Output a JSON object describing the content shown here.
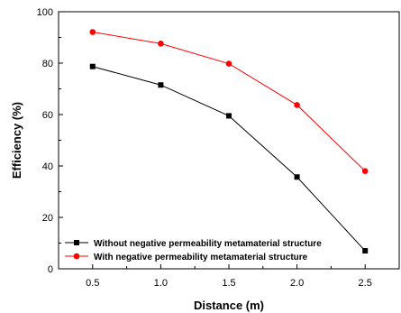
{
  "chart_data": {
    "type": "line",
    "title": "",
    "xlabel": "Distance (m)",
    "ylabel": "Efficiency (%)",
    "xlim": [
      0.25,
      2.75
    ],
    "ylim": [
      0,
      100
    ],
    "xticks": [
      0.5,
      1.0,
      1.5,
      2.0,
      2.5
    ],
    "xtick_labels": [
      "0.5",
      "1.0",
      "1.5",
      "2.0",
      "2.5"
    ],
    "yticks": [
      0,
      20,
      40,
      60,
      80,
      100
    ],
    "ytick_labels": [
      "0",
      "20",
      "40",
      "60",
      "80",
      "100"
    ],
    "grid": false,
    "legend_position": "bottom-left",
    "x": [
      0.5,
      1.0,
      1.5,
      2.0,
      2.5
    ],
    "series": [
      {
        "name": "Without negative permeability metamaterial structure",
        "values": [
          78.7,
          71.5,
          59.5,
          35.7,
          7.0
        ],
        "color": "#000000",
        "marker": "square"
      },
      {
        "name": "With negative permeability metamaterial structure",
        "values": [
          92.1,
          87.6,
          79.8,
          63.7,
          38.0
        ],
        "color": "#ff0000",
        "marker": "circle"
      }
    ]
  }
}
